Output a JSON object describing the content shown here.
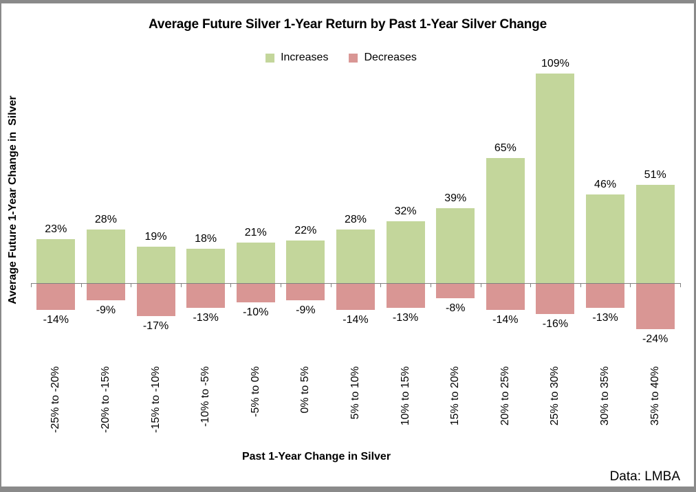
{
  "chart_data": {
    "type": "bar",
    "title": "Average Future Silver 1-Year Return by Past 1-Year Silver Change",
    "xlabel": "Past 1-Year Change in Silver",
    "ylabel": "Average Future 1-Year Change in  Silver",
    "source": "Data: LMBA",
    "legend_position": "top-center",
    "grid": false,
    "ylim": [
      -30,
      115
    ],
    "axis_color": "#808080",
    "categories": [
      "-25% to -20%",
      "-20% to -15%",
      "-15% to -10%",
      "-10% to -5%",
      "-5% to 0%",
      "0% to 5%",
      "5% to 10%",
      "10% to 15%",
      "15% to 20%",
      "20% to 25%",
      "25% to 30%",
      "30% to 35%",
      "35% to 40%"
    ],
    "series": [
      {
        "name": "Increases",
        "color": "#c3d69b",
        "values": [
          23,
          28,
          19,
          18,
          21,
          22,
          28,
          32,
          39,
          65,
          109,
          46,
          51
        ]
      },
      {
        "name": "Decreases",
        "color": "#d99694",
        "values": [
          -14,
          -9,
          -17,
          -13,
          -10,
          -9,
          -14,
          -13,
          -8,
          -14,
          -16,
          -13,
          -24
        ]
      }
    ],
    "value_label_suffix": "%"
  },
  "colors": {
    "frame_border": "#8a8a8a",
    "text": "#000000"
  }
}
